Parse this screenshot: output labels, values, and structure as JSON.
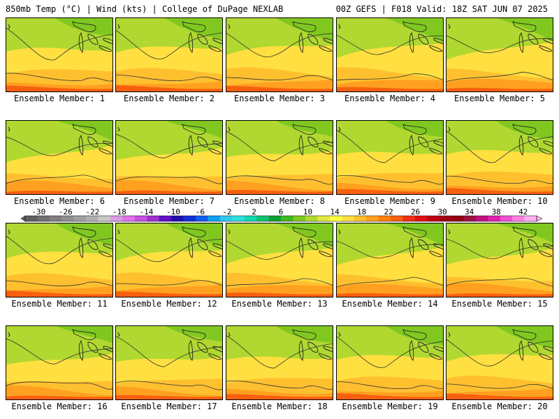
{
  "header": {
    "left": "850mb Temp (°C) | Wind (kts) | College of DuPage NEXLAB",
    "right": "00Z GEFS | F018 Valid: 18Z SAT JUN 07 2025"
  },
  "panels": [
    {
      "label": "Ensemble Member: 1"
    },
    {
      "label": "Ensemble Member: 2"
    },
    {
      "label": "Ensemble Member: 3"
    },
    {
      "label": "Ensemble Member: 4"
    },
    {
      "label": "Ensemble Member: 5"
    },
    {
      "label": "Ensemble Member: 6"
    },
    {
      "label": "Ensemble Member: 7"
    },
    {
      "label": "Ensemble Member: 8"
    },
    {
      "label": "Ensemble Member: 9"
    },
    {
      "label": "Ensemble Member: 10"
    },
    {
      "label": "Ensemble Member: 11"
    },
    {
      "label": "Ensemble Member: 12"
    },
    {
      "label": "Ensemble Member: 13"
    },
    {
      "label": "Ensemble Member: 14"
    },
    {
      "label": "Ensemble Member: 15"
    },
    {
      "label": "Ensemble Member: 16"
    },
    {
      "label": "Ensemble Member: 17"
    },
    {
      "label": "Ensemble Member: 18"
    },
    {
      "label": "Ensemble Member: 19"
    },
    {
      "label": "Ensemble Member: 20"
    }
  ],
  "colorbar": {
    "ticks": [
      "-30",
      "-26",
      "-22",
      "-18",
      "-14",
      "-10",
      "-6",
      "-2",
      "2",
      "6",
      "10",
      "14",
      "18",
      "22",
      "26",
      "30",
      "34",
      "38",
      "42"
    ],
    "colors": [
      "#606060",
      "#707070",
      "#808080",
      "#909090",
      "#a0a0a0",
      "#b0b0b0",
      "#c8c8c8",
      "#d89be8",
      "#e070e8",
      "#c850e0",
      "#a030d0",
      "#6010c8",
      "#2010b0",
      "#1030d8",
      "#1060f0",
      "#10a0f0",
      "#30c8f0",
      "#30e0e0",
      "#10d8b0",
      "#10c070",
      "#10a030",
      "#40b820",
      "#80c820",
      "#b0d830",
      "#e0e840",
      "#ffff40",
      "#ffe040",
      "#ffc030",
      "#ffa020",
      "#ff8010",
      "#f86010",
      "#f03010",
      "#e01010",
      "#c00010",
      "#a00010",
      "#900010",
      "#a01040",
      "#c01080",
      "#e020b0",
      "#f050d0",
      "#ff80e0",
      "#ffb0f0"
    ]
  }
}
